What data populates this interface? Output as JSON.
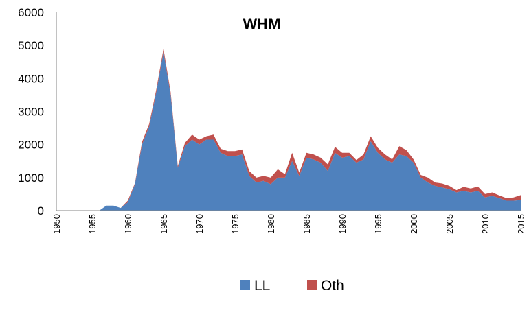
{
  "chart_data": {
    "type": "area",
    "title": "WHM",
    "xlabel": "",
    "ylabel": "",
    "ylim": [
      0,
      6000
    ],
    "yticks": [
      "0",
      "1000",
      "2000",
      "3000",
      "4000",
      "5000",
      "6000"
    ],
    "xlim": [
      1950,
      2015
    ],
    "xticks": [
      "1950",
      "1955",
      "1960",
      "1965",
      "1970",
      "1975",
      "1980",
      "1985",
      "1990",
      "1995",
      "2000",
      "2005",
      "2010",
      "2015"
    ],
    "stacked": true,
    "grid": false,
    "legend_position": "bottom",
    "x": [
      1950,
      1951,
      1952,
      1953,
      1954,
      1955,
      1956,
      1957,
      1958,
      1959,
      1960,
      1961,
      1962,
      1963,
      1964,
      1965,
      1966,
      1967,
      1968,
      1969,
      1970,
      1971,
      1972,
      1973,
      1974,
      1975,
      1976,
      1977,
      1978,
      1979,
      1980,
      1981,
      1982,
      1983,
      1984,
      1985,
      1986,
      1987,
      1988,
      1989,
      1990,
      1991,
      1992,
      1993,
      1994,
      1995,
      1996,
      1997,
      1998,
      1999,
      2000,
      2001,
      2002,
      2003,
      2004,
      2005,
      2006,
      2007,
      2008,
      2009,
      2010,
      2011,
      2012,
      2013,
      2014,
      2015
    ],
    "series": [
      {
        "name": "LL",
        "color": "#4f81bd",
        "values": [
          0,
          0,
          0,
          0,
          0,
          0,
          0,
          150,
          150,
          80,
          250,
          800,
          2000,
          2550,
          3600,
          4800,
          3500,
          1300,
          1950,
          2150,
          2000,
          2150,
          2150,
          1750,
          1650,
          1650,
          1700,
          1050,
          850,
          900,
          800,
          1000,
          1000,
          1500,
          1050,
          1600,
          1550,
          1450,
          1200,
          1750,
          1600,
          1650,
          1450,
          1550,
          2100,
          1750,
          1550,
          1450,
          1700,
          1650,
          1450,
          1000,
          850,
          750,
          700,
          650,
          550,
          600,
          550,
          600,
          400,
          450,
          380,
          300,
          300,
          320
        ]
      },
      {
        "name": "Oth",
        "color": "#c0504d",
        "values": [
          0,
          0,
          0,
          0,
          0,
          0,
          0,
          0,
          0,
          0,
          50,
          30,
          80,
          80,
          80,
          100,
          80,
          50,
          100,
          150,
          150,
          100,
          150,
          120,
          150,
          150,
          150,
          150,
          150,
          150,
          200,
          250,
          100,
          250,
          100,
          150,
          150,
          150,
          200,
          180,
          150,
          100,
          80,
          150,
          150,
          150,
          150,
          100,
          250,
          180,
          100,
          80,
          150,
          100,
          120,
          100,
          70,
          120,
          120,
          130,
          100,
          100,
          80,
          80,
          100,
          150
        ]
      }
    ]
  }
}
